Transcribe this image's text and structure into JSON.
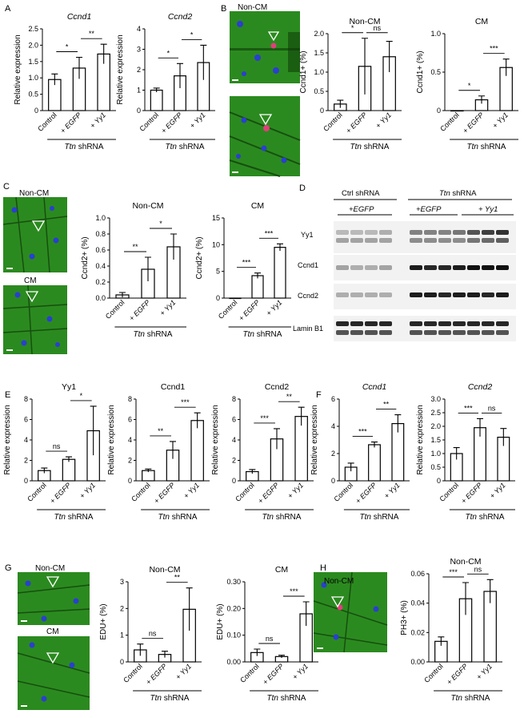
{
  "panel_labels": {
    "A": "A",
    "B": "B",
    "C": "C",
    "D": "D",
    "E": "E",
    "F": "F",
    "G": "G",
    "H": "H"
  },
  "micrographs": {
    "non_cm": "Non-CM",
    "cm": "CM"
  },
  "blot": {
    "ctrl_shrna": "Ctrl shRNA",
    "ttn": "Ttn",
    "shrna_suffix": " shRNA",
    "egfp1": "+EGFP",
    "egfp2": "+EGFP",
    "yy1": "+ Yy1",
    "rows": [
      "Yy1",
      "Ccnd1",
      "Ccnd2",
      "Lamin B1"
    ]
  },
  "colors": {
    "tissue": "#2b8a1f",
    "nuclei": "#2a3fd0",
    "marker": "#e0407a"
  },
  "chart_data": [
    {
      "id": "A1",
      "type": "bar",
      "title": "Ccnd1",
      "title_italic": true,
      "ylabel": "Relative expression",
      "categories": [
        "Control",
        "+ EGFP",
        "+ Yy1"
      ],
      "values": [
        0.95,
        1.3,
        1.73
      ],
      "errors": [
        0.17,
        0.33,
        0.3
      ],
      "ylim": [
        0,
        2.5
      ],
      "yticks": [
        "0",
        "0.5",
        "1.0",
        "1.5",
        "2.0",
        "2.5"
      ],
      "comparisons": [
        {
          "from": 0,
          "to": 1,
          "label": "*"
        },
        {
          "from": 1,
          "to": 2,
          "label": "**"
        }
      ],
      "group_label": "Ttn shRNA"
    },
    {
      "id": "A2",
      "type": "bar",
      "title": "Ccnd2",
      "title_italic": true,
      "ylabel": "Relative expression",
      "categories": [
        "Control",
        "+ EGFP",
        "+ Yy1"
      ],
      "values": [
        1.0,
        1.7,
        2.35
      ],
      "errors": [
        0.1,
        0.6,
        0.85
      ],
      "ylim": [
        0,
        4
      ],
      "yticks": [
        "0",
        "1",
        "2",
        "3",
        "4"
      ],
      "comparisons": [
        {
          "from": 0,
          "to": 1,
          "label": "*"
        },
        {
          "from": 1,
          "to": 2,
          "label": "*"
        }
      ],
      "group_label": "Ttn shRNA"
    },
    {
      "id": "B1",
      "type": "bar",
      "title": "Non-CM",
      "title_italic": false,
      "ylabel": "Ccnd1+ (%)",
      "categories": [
        "Control",
        "+ EGFP",
        "+ Yy1"
      ],
      "values": [
        0.17,
        1.15,
        1.4
      ],
      "errors": [
        0.1,
        0.73,
        0.4
      ],
      "ylim": [
        0,
        2.0
      ],
      "yticks": [
        "0",
        "0.5",
        "1.0",
        "1.5",
        "2.0"
      ],
      "comparisons": [
        {
          "from": 0,
          "to": 1,
          "label": "*"
        },
        {
          "from": 1,
          "to": 2,
          "label": "ns"
        }
      ],
      "group_label": "Ttn shRNA"
    },
    {
      "id": "B2",
      "type": "bar",
      "title": "CM",
      "title_italic": false,
      "ylabel": "Ccnd1+ (%)",
      "categories": [
        "Control",
        "+ EGFP",
        "+ Yy1"
      ],
      "values": [
        0.0,
        0.14,
        0.56
      ],
      "errors": [
        0.0,
        0.05,
        0.11
      ],
      "ylim": [
        0,
        1.0
      ],
      "yticks": [
        "0",
        "0.5",
        "1.0"
      ],
      "comparisons": [
        {
          "from": 0,
          "to": 1,
          "label": "*"
        },
        {
          "from": 1,
          "to": 2,
          "label": "***"
        }
      ],
      "group_label": "Ttn shRNA"
    },
    {
      "id": "C1",
      "type": "bar",
      "title": "Non-CM",
      "title_italic": false,
      "ylabel": "Ccnd2+ (%)",
      "categories": [
        "Control",
        "+ EGFP",
        "+ Yy1"
      ],
      "values": [
        0.04,
        0.36,
        0.64
      ],
      "errors": [
        0.03,
        0.15,
        0.16
      ],
      "ylim": [
        0,
        1.0
      ],
      "yticks": [
        "0.0",
        "0.2",
        "0.4",
        "0.6",
        "0.8",
        "1.0"
      ],
      "comparisons": [
        {
          "from": 0,
          "to": 1,
          "label": "**"
        },
        {
          "from": 1,
          "to": 2,
          "label": "*"
        }
      ],
      "group_label": "Ttn shRNA"
    },
    {
      "id": "C2",
      "type": "bar",
      "title": "CM",
      "title_italic": false,
      "ylabel": "Ccnd2+ (%)",
      "categories": [
        "Control",
        "+ EGFP",
        "+ Yy1"
      ],
      "values": [
        0.0,
        4.2,
        9.5
      ],
      "errors": [
        0.0,
        0.5,
        0.65
      ],
      "ylim": [
        0,
        15
      ],
      "yticks": [
        "0",
        "5",
        "10",
        "15"
      ],
      "comparisons": [
        {
          "from": 0,
          "to": 1,
          "label": "***"
        },
        {
          "from": 1,
          "to": 2,
          "label": "***"
        }
      ],
      "group_label": "Ttn shRNA"
    },
    {
      "id": "E1",
      "type": "bar",
      "title": "Yy1",
      "title_italic": false,
      "ylabel": "Relative expression",
      "categories": [
        "Control",
        "+ EGFP",
        "+ Yy1"
      ],
      "values": [
        1.0,
        2.1,
        4.9
      ],
      "errors": [
        0.25,
        0.25,
        2.4
      ],
      "ylim": [
        0,
        8
      ],
      "yticks": [
        "0",
        "2",
        "4",
        "6",
        "8"
      ],
      "comparisons": [
        {
          "from": 0,
          "to": 1,
          "label": "ns"
        },
        {
          "from": 1,
          "to": 2,
          "label": "*"
        }
      ],
      "group_label": "Ttn shRNA"
    },
    {
      "id": "E2",
      "type": "bar",
      "title": "Ccnd1",
      "title_italic": false,
      "ylabel": "Relative expression",
      "categories": [
        "Control",
        "+ EGFP",
        "+ Yy1"
      ],
      "values": [
        1.0,
        3.0,
        5.9
      ],
      "errors": [
        0.15,
        0.85,
        0.75
      ],
      "ylim": [
        0,
        8
      ],
      "yticks": [
        "0",
        "2",
        "4",
        "6",
        "8"
      ],
      "comparisons": [
        {
          "from": 0,
          "to": 1,
          "label": "**"
        },
        {
          "from": 1,
          "to": 2,
          "label": "***"
        }
      ],
      "group_label": "Ttn shRNA"
    },
    {
      "id": "E3",
      "type": "bar",
      "title": "Ccnd2",
      "title_italic": false,
      "ylabel": "Relative expression",
      "categories": [
        "Control",
        "+ EGFP",
        "+ Yy1"
      ],
      "values": [
        0.9,
        4.1,
        6.3
      ],
      "errors": [
        0.2,
        1.0,
        0.9
      ],
      "ylim": [
        0,
        8
      ],
      "yticks": [
        "0",
        "2",
        "4",
        "6",
        "8"
      ],
      "comparisons": [
        {
          "from": 0,
          "to": 1,
          "label": "***"
        },
        {
          "from": 1,
          "to": 2,
          "label": "**"
        }
      ],
      "group_label": "Ttn shRNA"
    },
    {
      "id": "F1",
      "type": "bar",
      "title": "Ccnd1",
      "title_italic": true,
      "ylabel": "Relative expression",
      "categories": [
        "Control",
        "+ EGFP",
        "+ Yy1"
      ],
      "values": [
        1.0,
        2.65,
        4.2
      ],
      "errors": [
        0.3,
        0.2,
        0.65
      ],
      "ylim": [
        0,
        6
      ],
      "yticks": [
        "0",
        "2",
        "4",
        "6"
      ],
      "comparisons": [
        {
          "from": 0,
          "to": 1,
          "label": "***"
        },
        {
          "from": 1,
          "to": 2,
          "label": "**"
        }
      ],
      "group_label": "Ttn shRNA"
    },
    {
      "id": "F2",
      "type": "bar",
      "title": "Ccnd2",
      "title_italic": true,
      "ylabel": "Relative expression",
      "categories": [
        "Control",
        "+ EGFP",
        "+ Yy1"
      ],
      "values": [
        1.0,
        1.95,
        1.6
      ],
      "errors": [
        0.22,
        0.33,
        0.32
      ],
      "ylim": [
        0,
        3.0
      ],
      "yticks": [
        "0",
        "0.5",
        "1.0",
        "1.5",
        "2.0",
        "2.5",
        "3.0"
      ],
      "comparisons": [
        {
          "from": 0,
          "to": 1,
          "label": "***"
        },
        {
          "from": 1,
          "to": 2,
          "label": "ns"
        }
      ],
      "group_label": "Ttn shRNA"
    },
    {
      "id": "G1",
      "type": "bar",
      "title": "Non-CM",
      "title_italic": false,
      "ylabel": "EDU+ (%)",
      "categories": [
        "Control",
        "+ EGFP",
        "+ Yy1"
      ],
      "values": [
        0.45,
        0.28,
        1.97
      ],
      "errors": [
        0.22,
        0.12,
        0.8
      ],
      "ylim": [
        0,
        3
      ],
      "yticks": [
        "0",
        "1",
        "2",
        "3"
      ],
      "comparisons": [
        {
          "from": 0,
          "to": 1,
          "label": "ns"
        },
        {
          "from": 1,
          "to": 2,
          "label": "**"
        }
      ],
      "group_label": "Ttn shRNA"
    },
    {
      "id": "G2",
      "type": "bar",
      "title": "CM",
      "title_italic": false,
      "ylabel": "EDU+ (%)",
      "categories": [
        "Control",
        "+ EGFP",
        "+ Yy1"
      ],
      "values": [
        0.035,
        0.02,
        0.18
      ],
      "errors": [
        0.013,
        0.005,
        0.045
      ],
      "ylim": [
        0,
        0.3
      ],
      "yticks": [
        "0.00",
        "0.10",
        "0.20",
        "0.30"
      ],
      "comparisons": [
        {
          "from": 0,
          "to": 1,
          "label": "ns"
        },
        {
          "from": 1,
          "to": 2,
          "label": "***"
        }
      ],
      "group_label": "Ttn shRNA"
    },
    {
      "id": "H1",
      "type": "bar",
      "title": "Non-CM",
      "title_italic": false,
      "ylabel": "PH3+ (%)",
      "categories": [
        "Control",
        "+ EGFP",
        "+ Yy1"
      ],
      "values": [
        0.014,
        0.043,
        0.048
      ],
      "errors": [
        0.003,
        0.011,
        0.008
      ],
      "ylim": [
        0,
        0.06
      ],
      "yticks": [
        "0.00",
        "0.02",
        "0.04",
        "0.06"
      ],
      "comparisons": [
        {
          "from": 0,
          "to": 1,
          "label": "***"
        },
        {
          "from": 1,
          "to": 2,
          "label": "ns"
        }
      ],
      "group_label": "Ttn shRNA"
    }
  ]
}
